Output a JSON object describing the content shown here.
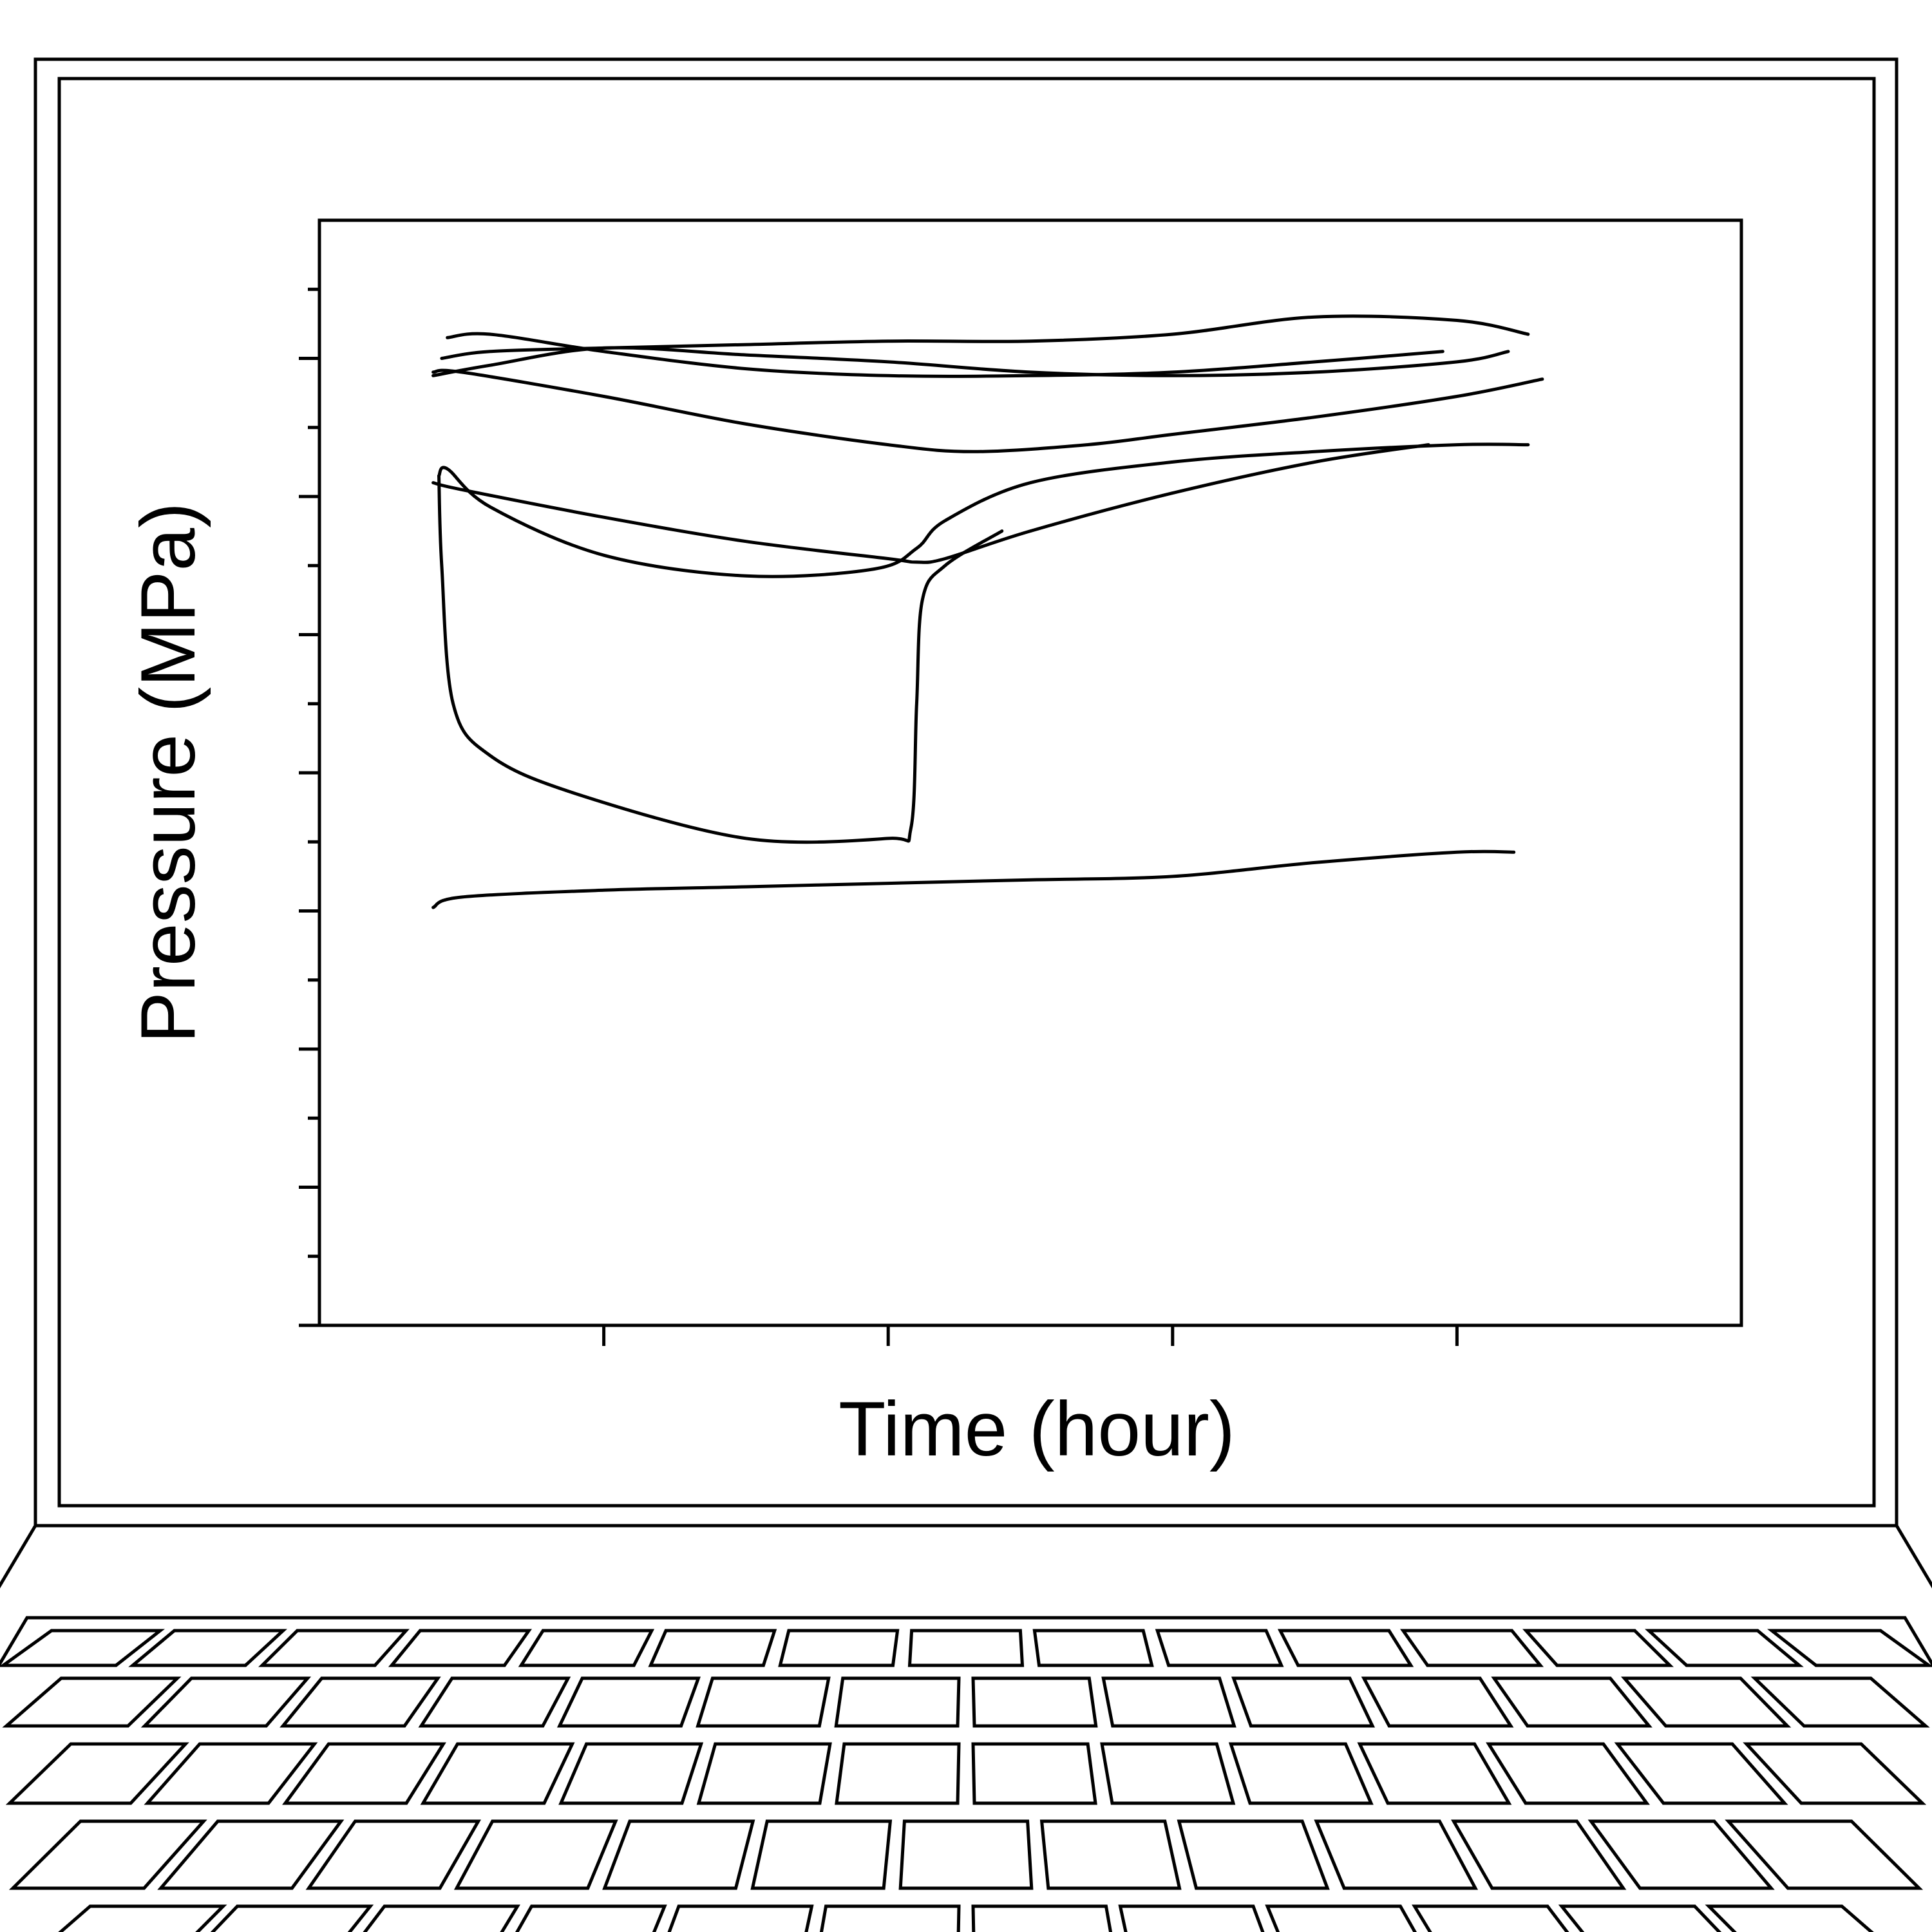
{
  "chart_data": {
    "type": "line",
    "title": "",
    "xlabel": "Time (hour)",
    "ylabel": "Pressure (MPa)",
    "xlim": [
      0,
      5
    ],
    "ylim": [
      0,
      16
    ],
    "x_major_ticks": [
      1,
      2,
      3,
      4
    ],
    "y_major_ticks": [
      0,
      2,
      4,
      6,
      8,
      10,
      12,
      14
    ],
    "y_minor_ticks": [
      1,
      3,
      5,
      7,
      9,
      11,
      13,
      15
    ],
    "tick_labels_shown": false,
    "grid": false,
    "legend": "none",
    "series": [
      {
        "x": [
          0.45,
          0.6,
          1.0,
          1.5,
          2.0,
          2.5,
          3.0,
          3.5,
          3.95
        ],
        "values": [
          14.3,
          14.35,
          14.1,
          13.85,
          13.75,
          13.75,
          13.8,
          13.95,
          14.1
        ]
      },
      {
        "x": [
          0.43,
          0.6,
          1.0,
          1.5,
          2.0,
          2.5,
          3.0,
          3.5,
          4.0,
          4.25
        ],
        "values": [
          14.0,
          14.1,
          14.15,
          14.2,
          14.25,
          14.25,
          14.35,
          14.6,
          14.55,
          14.35
        ]
      },
      {
        "x": [
          0.4,
          0.6,
          1.0,
          1.5,
          2.0,
          2.5,
          3.0,
          3.5,
          4.0,
          4.18
        ],
        "values": [
          13.75,
          13.9,
          14.15,
          14.05,
          13.95,
          13.8,
          13.75,
          13.8,
          13.95,
          14.1
        ]
      },
      {
        "x": [
          0.4,
          0.5,
          1.0,
          1.5,
          2.0,
          2.3,
          2.7,
          3.0,
          3.5,
          4.0,
          4.3
        ],
        "values": [
          13.8,
          13.8,
          13.45,
          13.05,
          12.75,
          12.65,
          12.75,
          12.9,
          13.15,
          13.45,
          13.7
        ]
      },
      {
        "x": [
          0.42,
          0.45,
          0.6,
          1.0,
          1.5,
          1.95,
          2.1,
          2.2,
          2.5,
          3.0,
          3.5,
          4.0,
          4.25
        ],
        "values": [
          12.3,
          12.4,
          11.85,
          11.15,
          10.85,
          10.95,
          11.25,
          11.65,
          12.2,
          12.5,
          12.65,
          12.75,
          12.75
        ]
      },
      {
        "x": [
          0.4,
          0.5,
          1.0,
          1.5,
          2.0,
          2.1,
          2.2,
          2.5,
          3.0,
          3.5,
          3.9
        ],
        "values": [
          12.2,
          12.1,
          11.7,
          11.35,
          11.1,
          11.05,
          11.1,
          11.5,
          12.05,
          12.5,
          12.75
        ]
      },
      {
        "x": [
          0.42,
          0.43,
          0.47,
          0.6,
          0.9,
          1.5,
          2.0,
          2.08,
          2.1,
          2.12,
          2.2,
          2.4
        ],
        "values": [
          12.3,
          11.0,
          9.0,
          8.25,
          7.7,
          7.05,
          7.05,
          7.2,
          9.0,
          10.5,
          11.0,
          11.5
        ]
      },
      {
        "x": [
          0.4,
          0.5,
          1.0,
          1.5,
          2.0,
          2.5,
          3.0,
          3.5,
          4.0,
          4.2
        ],
        "values": [
          6.05,
          6.2,
          6.3,
          6.35,
          6.4,
          6.45,
          6.5,
          6.7,
          6.85,
          6.85
        ]
      }
    ]
  }
}
